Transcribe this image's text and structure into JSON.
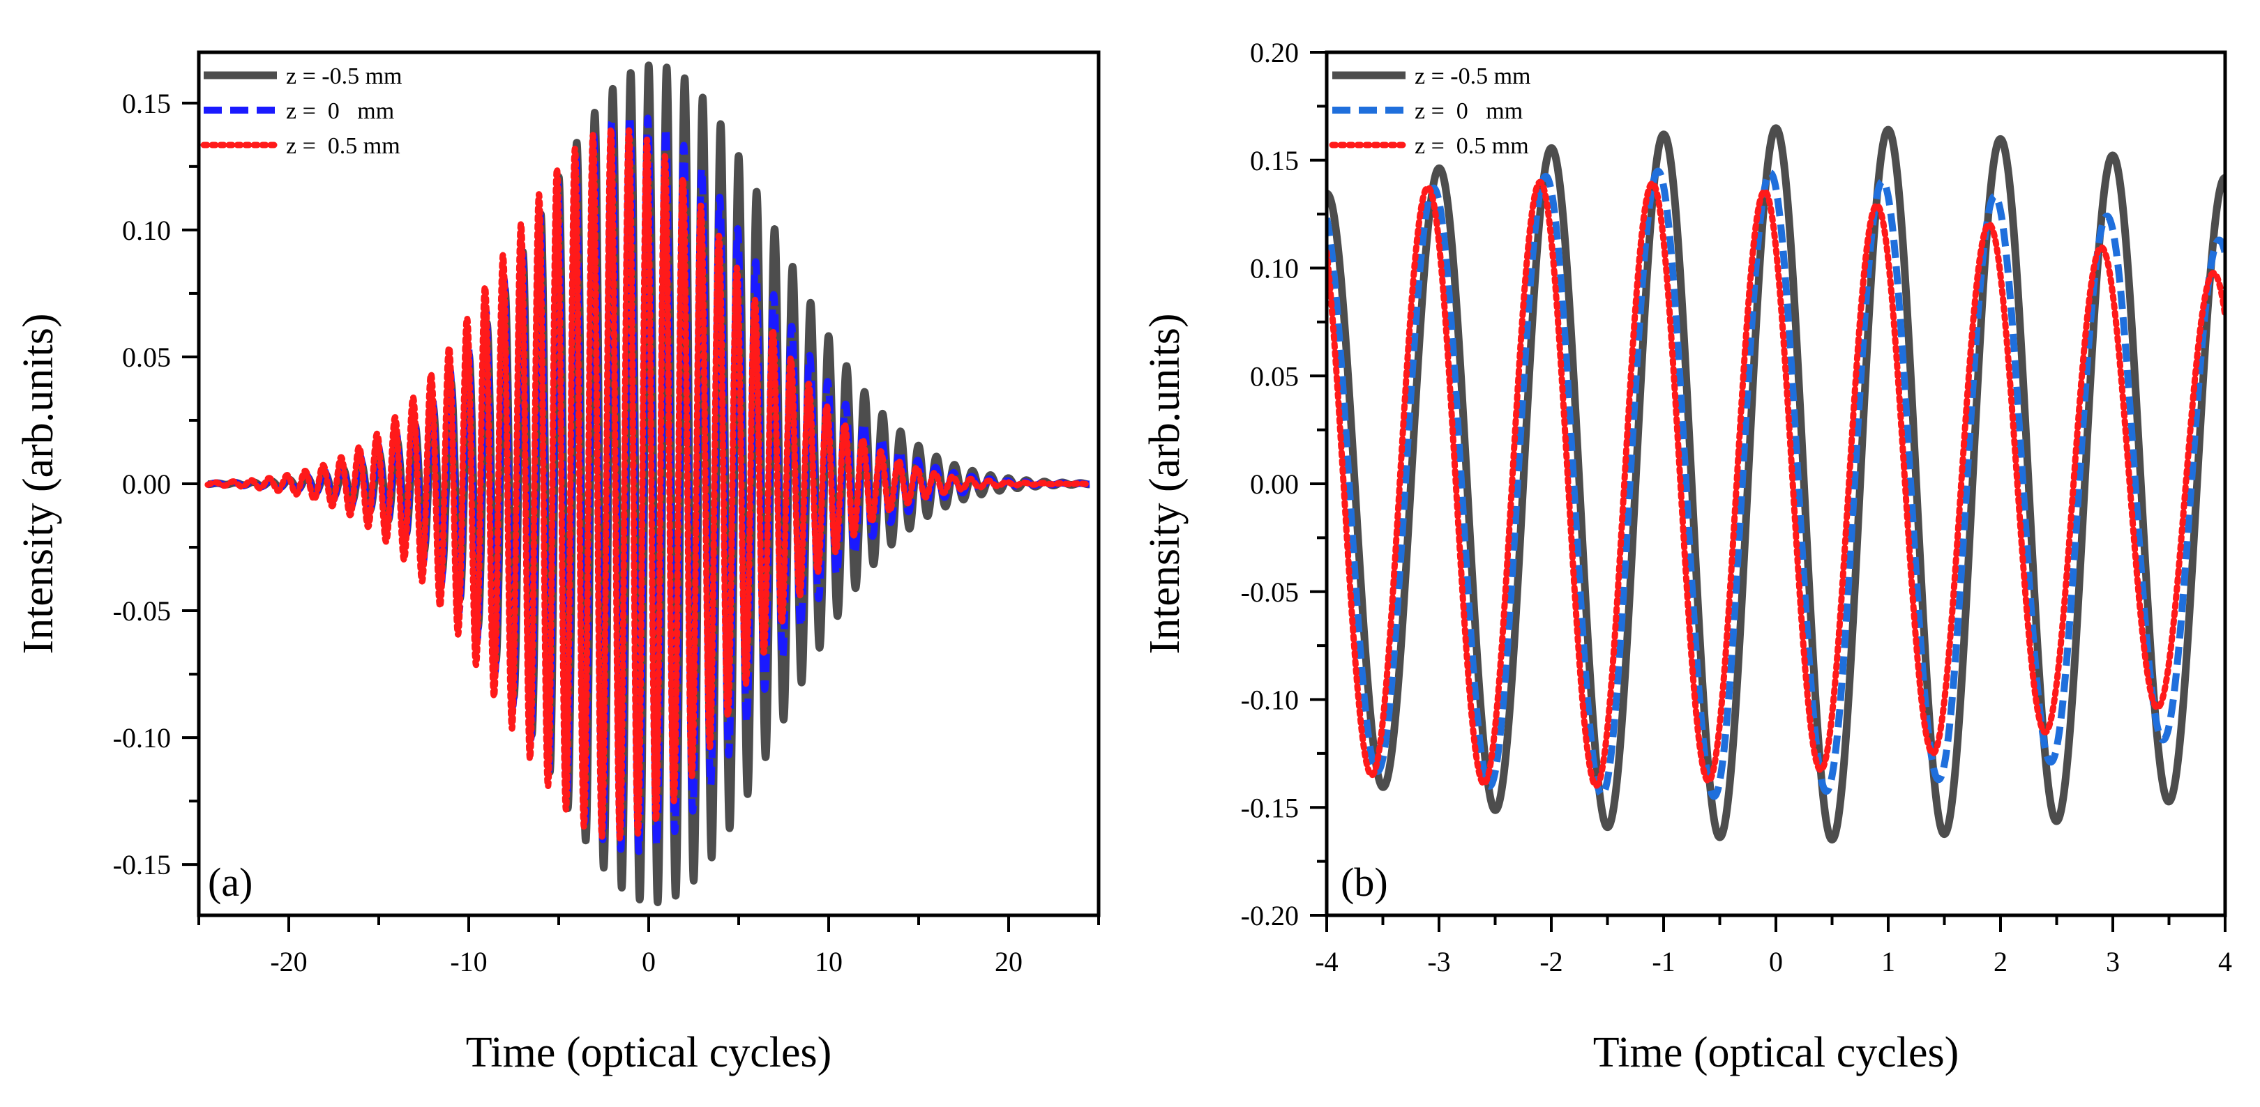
{
  "chart_data": [
    {
      "type": "line",
      "panel_label": "(a)",
      "xlabel": "Time (optical cycles)",
      "ylabel": "Intensity (arb.units)",
      "xlim": [
        -25,
        25
      ],
      "ylim": [
        -0.17,
        0.17
      ],
      "xticks": [
        -20,
        -10,
        0,
        10,
        20
      ],
      "xtick_labels": [
        "-20",
        "-10",
        "0",
        "10",
        "20"
      ],
      "yticks": [
        -0.15,
        -0.1,
        -0.05,
        0.0,
        0.05,
        0.1,
        0.15
      ],
      "ytick_labels": [
        "-0.15",
        "-0.10",
        "-0.05",
        "0.00",
        "0.05",
        "0.10",
        "0.15"
      ],
      "x_range_of_data": [
        -24.5,
        24.5
      ],
      "legend_position": "top-left",
      "grid": false,
      "series": [
        {
          "name": "z = -0.5 mm",
          "color": "#4d4d4d",
          "style": "solid",
          "peak_amplitude": 0.165,
          "envelope_center": 0.3,
          "envelope_width": 9.5,
          "period": 1.0,
          "phase_offset": 0.0
        },
        {
          "name": "z =  0   mm",
          "color": "#1a1aff",
          "style": "dashed",
          "peak_amplitude": 0.145,
          "envelope_center": -0.8,
          "envelope_width": 9.5,
          "period": 1.0,
          "phase_offset": -0.05
        },
        {
          "name": "z =  0.5 mm",
          "color": "#ff1a1a",
          "style": "dotted",
          "peak_amplitude": 0.14,
          "envelope_center": -1.8,
          "envelope_width": 9.5,
          "period": 1.0,
          "phase_offset": -0.1
        }
      ]
    },
    {
      "type": "line",
      "panel_label": "(b)",
      "xlabel": "Time (optical cycles)",
      "ylabel": "Intensity (arb.units)",
      "xlim": [
        -4,
        4
      ],
      "ylim": [
        -0.2,
        0.2
      ],
      "xticks": [
        -4,
        -3,
        -2,
        -1,
        0,
        1,
        2,
        3,
        4
      ],
      "xtick_labels": [
        "-4",
        "-3",
        "-2",
        "-1",
        "0",
        "1",
        "2",
        "3",
        "4"
      ],
      "yticks": [
        -0.2,
        -0.15,
        -0.1,
        -0.05,
        0.0,
        0.05,
        0.1,
        0.15,
        0.2
      ],
      "ytick_labels": [
        "-0.20",
        "-0.15",
        "-0.10",
        "-0.05",
        "0.00",
        "0.05",
        "0.10",
        "0.15",
        "0.20"
      ],
      "legend_position": "top-left",
      "grid": false,
      "series": [
        {
          "name": "z = -0.5 mm",
          "color": "#4d4d4d",
          "style": "solid",
          "peak_amplitude": 0.165,
          "envelope_center": 0.3,
          "envelope_width": 9.5,
          "period": 1.0,
          "phase_offset": 0.0
        },
        {
          "name": "z =  0   mm",
          "color": "#1f6fdc",
          "style": "dashed",
          "peak_amplitude": 0.145,
          "envelope_center": -0.8,
          "envelope_width": 9.5,
          "period": 1.0,
          "phase_offset": -0.05
        },
        {
          "name": "z =  0.5 mm",
          "color": "#ff1a1a",
          "style": "dotted",
          "peak_amplitude": 0.14,
          "envelope_center": -1.8,
          "envelope_width": 9.5,
          "period": 1.0,
          "phase_offset": -0.1
        }
      ]
    }
  ]
}
